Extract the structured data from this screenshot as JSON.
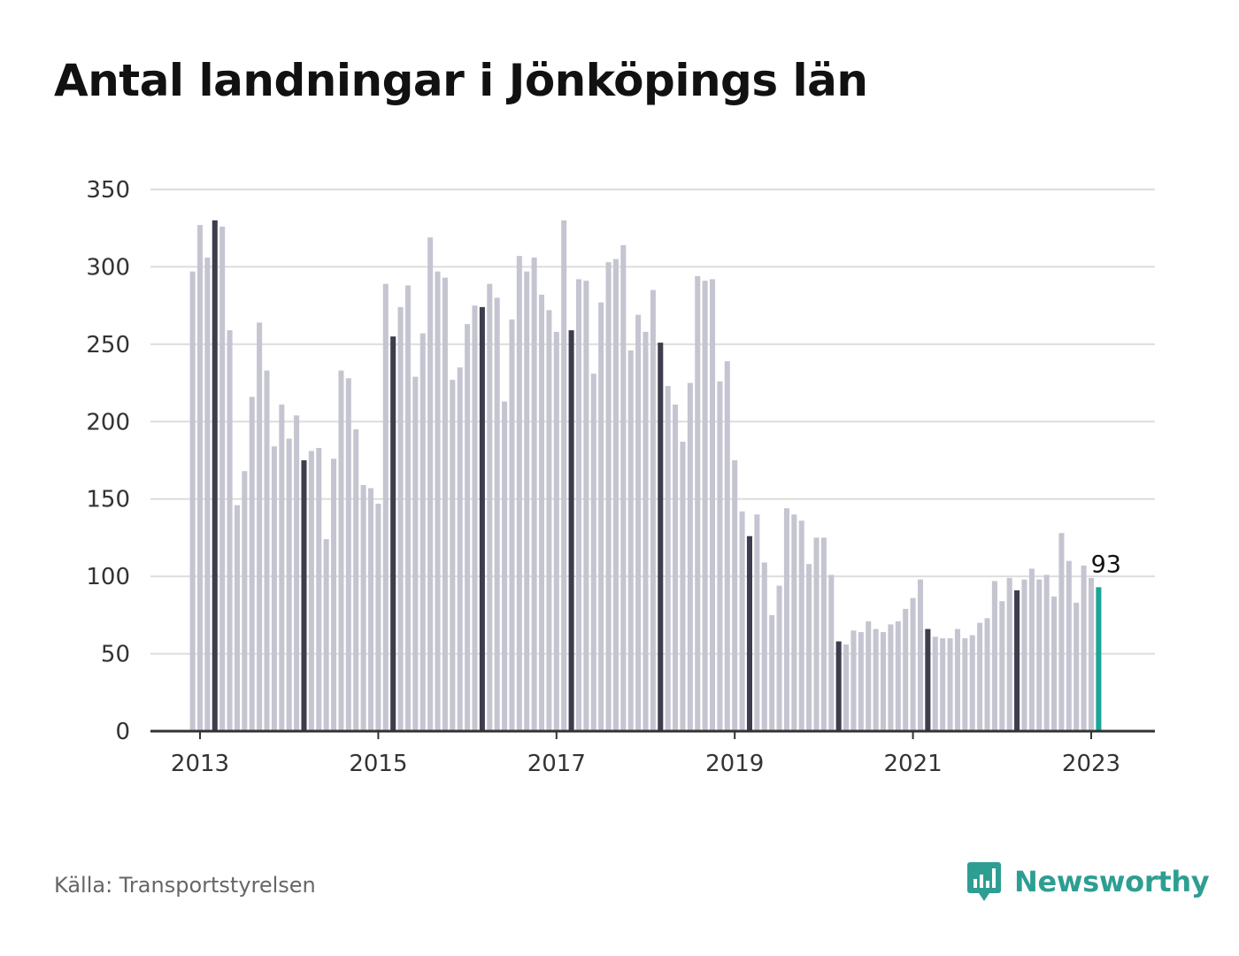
{
  "title": "Antal landningar i Jönköpings län",
  "source": "Källa: Transportstyrelsen",
  "brand": {
    "name": "Newsworthy",
    "icon": "newsworthy-logo-icon",
    "color": "#2e9e93"
  },
  "colors": {
    "bar": "#c5c5d1",
    "bar_january": "#3d3d4d",
    "bar_latest": "#1aa597",
    "grid": "#dddddd",
    "axis": "#333333"
  },
  "chart_data": {
    "type": "bar",
    "title": "Antal landningar i Jönköpings län",
    "xlabel": "",
    "ylabel": "",
    "ylim": [
      0,
      350
    ],
    "yticks": [
      "0",
      "50",
      "100",
      "150",
      "200",
      "250",
      "300",
      "350"
    ],
    "xticks": [
      "2013",
      "2015",
      "2017",
      "2019",
      "2021",
      "2023"
    ],
    "grid": true,
    "start": "2012-12",
    "end": "2023-03",
    "annotation": {
      "label": "93",
      "value": 93,
      "period": "2023-03"
    },
    "values": [
      297,
      327,
      306,
      330,
      326,
      259,
      146,
      168,
      216,
      264,
      233,
      184,
      211,
      189,
      204,
      175,
      181,
      183,
      124,
      176,
      233,
      228,
      195,
      159,
      157,
      147,
      289,
      255,
      274,
      288,
      229,
      257,
      319,
      297,
      293,
      227,
      235,
      263,
      275,
      274,
      289,
      280,
      213,
      266,
      307,
      297,
      306,
      282,
      272,
      258,
      330,
      259,
      292,
      291,
      231,
      277,
      303,
      305,
      314,
      246,
      269,
      258,
      285,
      251,
      223,
      211,
      187,
      225,
      294,
      291,
      292,
      226,
      239,
      175,
      142,
      126,
      140,
      109,
      75,
      94,
      144,
      140,
      136,
      108,
      125,
      125,
      101,
      58,
      56,
      65,
      64,
      71,
      66,
      64,
      69,
      71,
      79,
      86,
      98,
      66,
      61,
      60,
      60,
      66,
      60,
      62,
      70,
      73,
      97,
      84,
      99,
      91,
      98,
      105,
      98,
      101,
      87,
      128,
      110,
      83,
      107,
      99,
      93
    ]
  }
}
